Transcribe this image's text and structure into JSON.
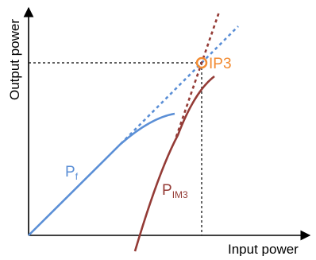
{
  "labels": {
    "ylabel": "Output power",
    "xlabel": "Input power",
    "fundamental": {
      "main": "P",
      "sub": "f"
    },
    "intermod": {
      "main": "P",
      "sub": "IM3"
    },
    "intercept": "IP3"
  },
  "colors": {
    "fundamental": "#5b8fd6",
    "intermod": "#943b36",
    "intercept": "#f28a30",
    "axes": "#000000"
  }
}
